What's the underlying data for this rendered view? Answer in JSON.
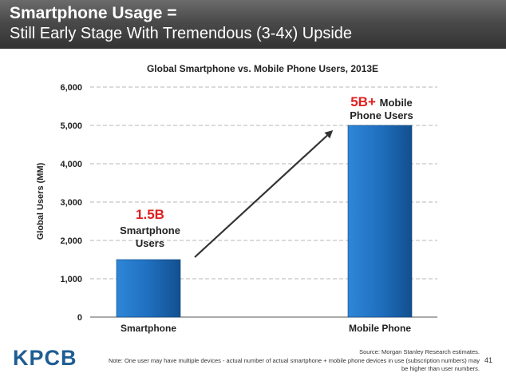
{
  "header": {
    "line1": "Smartphone Usage =",
    "line2": "Still Early Stage With Tremendous (3-4x) Upside"
  },
  "chart_data": {
    "type": "bar",
    "title": "Global Smartphone vs. Mobile Phone Users, 2013E",
    "ylabel": "Global Users (MM)",
    "xlabel": "",
    "categories": [
      "Smartphone",
      "Mobile Phone"
    ],
    "values": [
      1500,
      5000
    ],
    "ylim": [
      0,
      6000
    ],
    "yticks": [
      "0",
      "1,000",
      "2,000",
      "3,000",
      "4,000",
      "5,000",
      "6,000"
    ],
    "grid": true,
    "bar_color": "#1f6fbf",
    "annotations": [
      {
        "highlight": "1.5B",
        "line1": "Smartphone",
        "line2": "Users"
      },
      {
        "highlight": "5B+",
        "line1": "Mobile",
        "line2": "Phone Users"
      }
    ],
    "highlight_color": "#e02020"
  },
  "footer": {
    "logo": "KPCB",
    "source": "Source: Morgan Stanley Research estimates.",
    "note_line1": "Note: One user may have multiple devices - actual number of actual smartphone + mobile phone devices in use (subscription numbers) may",
    "note_line2": "be higher than user numbers.",
    "page": "41"
  }
}
